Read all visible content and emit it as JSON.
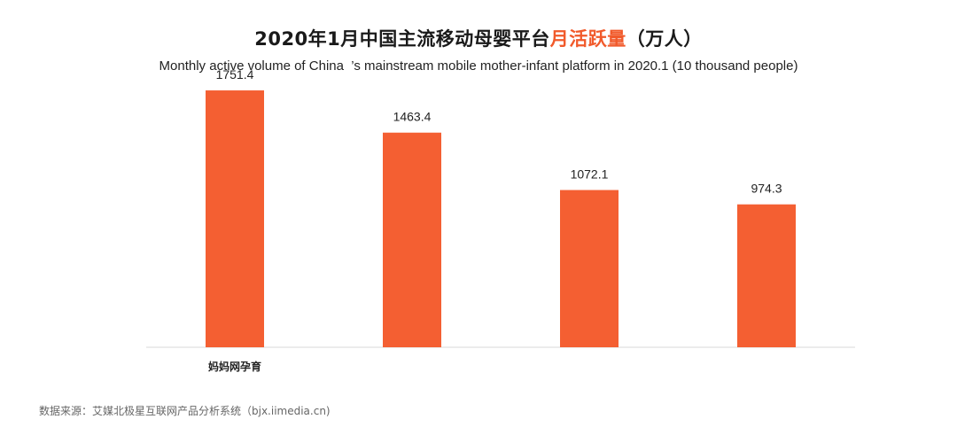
{
  "title": {
    "main": "2020年1月中国主流移动母婴平台",
    "accent": "月活跃量",
    "suffix": "（万人）"
  },
  "subtitle": "Monthly active volume of China  ’s mainstream mobile mother-infant platform in 2020.1 (10 thousand people)",
  "source": "数据来源：艾媒北极星互联网产品分析系统（bjx.iimedia.cn)",
  "colors": {
    "bar": "#f45f32",
    "accent": "#f15a2b",
    "axis": "#d9d9d9"
  },
  "chart_data": {
    "type": "bar",
    "categories": [
      "妈妈网孕育",
      "",
      "",
      ""
    ],
    "values": [
      1751.4,
      1463.4,
      1072.1,
      974.3
    ],
    "data_labels": [
      "1751.4",
      "1463.4",
      "1072.1",
      "974.3"
    ],
    "ylim": [
      0,
      1800
    ],
    "grid": false,
    "legend": "none"
  }
}
